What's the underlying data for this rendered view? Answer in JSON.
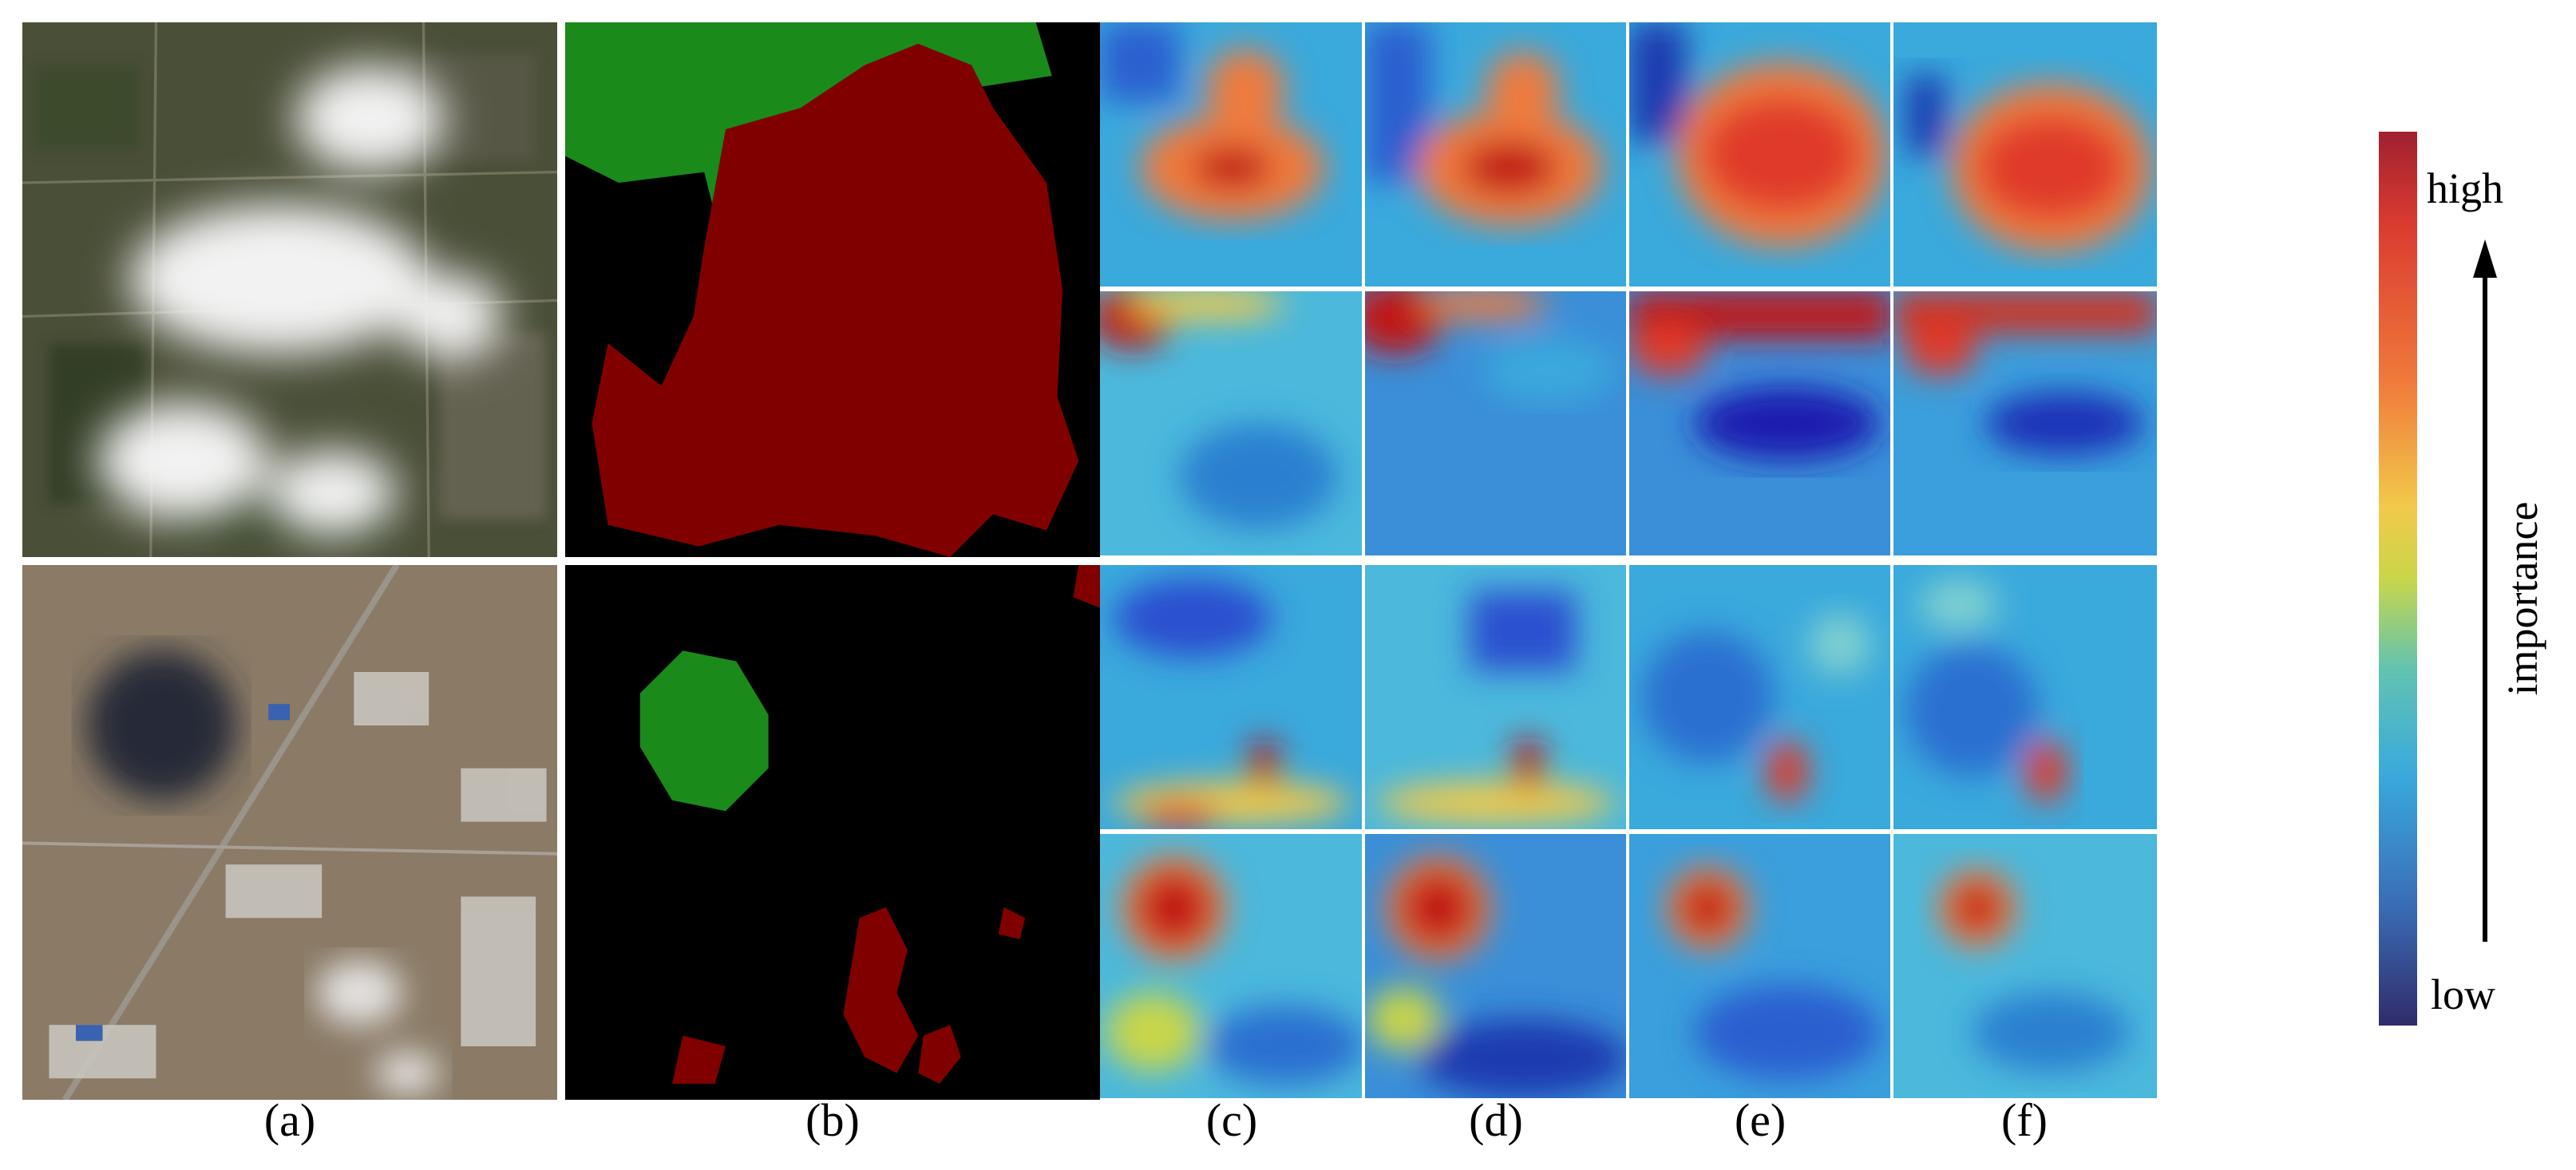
{
  "figure": {
    "columns": [
      {
        "id": "a",
        "label": "(a)"
      },
      {
        "id": "b",
        "label": "(b)"
      },
      {
        "id": "c",
        "label": "(c)"
      },
      {
        "id": "d",
        "label": "(d)"
      },
      {
        "id": "e",
        "label": "(e)"
      },
      {
        "id": "f",
        "label": "(f)"
      }
    ],
    "mask_colors": {
      "background": "#000000",
      "class_green": "#1a8a1a",
      "class_red": "#800000"
    }
  },
  "scale": {
    "high_label": "high",
    "low_label": "low",
    "axis_label": "importance",
    "colors": [
      "#a02030",
      "#d93a30",
      "#f07a3c",
      "#f2c94a",
      "#c9d64a",
      "#63c3b0",
      "#3aa9dc",
      "#3a6fb8",
      "#302c6a"
    ]
  }
}
